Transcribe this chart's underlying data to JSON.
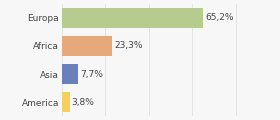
{
  "categories": [
    "Europa",
    "Africa",
    "Asia",
    "America"
  ],
  "values": [
    65.2,
    23.3,
    7.7,
    3.8
  ],
  "labels": [
    "65,2%",
    "23,3%",
    "7,7%",
    "3,8%"
  ],
  "bar_colors": [
    "#b5cc8e",
    "#e8a97a",
    "#6b7fba",
    "#f5d060"
  ],
  "background_color": "#f7f7f7",
  "xlim": [
    0,
    85
  ],
  "bar_height": 0.72,
  "label_fontsize": 6.5,
  "tick_fontsize": 6.5
}
